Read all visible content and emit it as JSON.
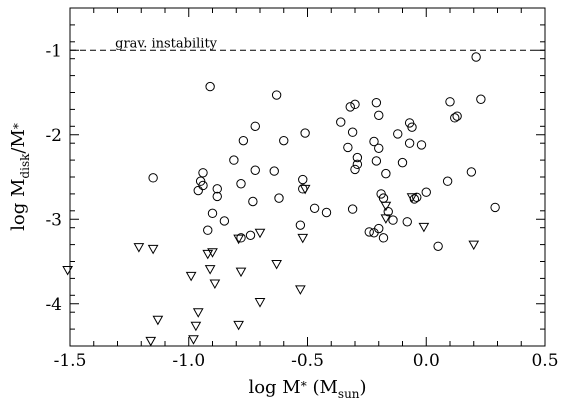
{
  "chart_data": {
    "type": "scatter",
    "title": "",
    "xlabel": {
      "main": "log M",
      "sub": "*",
      "unit_open": " (M",
      "unit_sub": "sun",
      "unit_close": ")"
    },
    "ylabel": {
      "main": "log M",
      "sub": "disk",
      "rest": "/M",
      "sub2": "*"
    },
    "xlim": [
      -1.5,
      0.5
    ],
    "ylim": [
      -4.5,
      -0.5
    ],
    "xticks": [
      -1.5,
      -1.0,
      -0.5,
      0.0,
      0.5
    ],
    "xtick_labels": [
      "-1.5",
      "-1.0",
      "-0.5",
      "0.0",
      "0.5"
    ],
    "yticks": [
      -4,
      -3,
      -2,
      -1
    ],
    "ytick_labels": [
      "-4",
      "-3",
      "-2",
      "-1"
    ],
    "grid": false,
    "reference_line": {
      "y": -1,
      "label": "grav. instability",
      "style": "dashed"
    },
    "series": [
      {
        "marker": "circle",
        "points": [
          [
            -1.15,
            -2.51
          ],
          [
            -0.91,
            -1.43
          ],
          [
            -0.96,
            -2.66
          ],
          [
            -0.95,
            -2.55
          ],
          [
            -0.94,
            -2.45
          ],
          [
            -0.94,
            -2.6
          ],
          [
            -0.88,
            -2.64
          ],
          [
            -0.88,
            -2.73
          ],
          [
            -0.9,
            -2.93
          ],
          [
            -0.85,
            -3.02
          ],
          [
            -0.92,
            -3.13
          ],
          [
            -0.77,
            -2.07
          ],
          [
            -0.81,
            -2.3
          ],
          [
            -0.72,
            -1.9
          ],
          [
            -0.78,
            -2.58
          ],
          [
            -0.73,
            -2.79
          ],
          [
            -0.72,
            -2.42
          ],
          [
            -0.78,
            -3.22
          ],
          [
            -0.74,
            -3.19
          ],
          [
            -0.63,
            -1.53
          ],
          [
            -0.6,
            -2.07
          ],
          [
            -0.64,
            -2.43
          ],
          [
            -0.62,
            -2.75
          ],
          [
            -0.51,
            -1.98
          ],
          [
            -0.52,
            -2.53
          ],
          [
            -0.52,
            -2.64
          ],
          [
            -0.47,
            -2.87
          ],
          [
            -0.53,
            -3.07
          ],
          [
            -0.42,
            -2.92
          ],
          [
            -0.36,
            -1.85
          ],
          [
            -0.32,
            -1.67
          ],
          [
            -0.3,
            -1.64
          ],
          [
            -0.31,
            -1.97
          ],
          [
            -0.33,
            -2.15
          ],
          [
            -0.29,
            -2.27
          ],
          [
            -0.29,
            -2.35
          ],
          [
            -0.3,
            -2.41
          ],
          [
            -0.31,
            -2.88
          ],
          [
            -0.21,
            -1.62
          ],
          [
            -0.2,
            -1.77
          ],
          [
            -0.22,
            -2.08
          ],
          [
            -0.2,
            -2.16
          ],
          [
            -0.21,
            -2.31
          ],
          [
            -0.17,
            -2.46
          ],
          [
            -0.19,
            -2.7
          ],
          [
            -0.18,
            -2.75
          ],
          [
            -0.16,
            -2.91
          ],
          [
            -0.14,
            -3.01
          ],
          [
            -0.2,
            -3.11
          ],
          [
            -0.24,
            -3.15
          ],
          [
            -0.22,
            -3.16
          ],
          [
            -0.18,
            -3.22
          ],
          [
            -0.12,
            -1.99
          ],
          [
            -0.1,
            -2.33
          ],
          [
            -0.07,
            -1.86
          ],
          [
            -0.06,
            -1.91
          ],
          [
            -0.07,
            -2.1
          ],
          [
            -0.04,
            -2.74
          ],
          [
            -0.08,
            -3.03
          ],
          [
            -0.02,
            -2.12
          ],
          [
            0.0,
            -2.68
          ],
          [
            0.05,
            -3.32
          ],
          [
            0.1,
            -1.61
          ],
          [
            0.12,
            -1.8
          ],
          [
            0.13,
            -1.78
          ],
          [
            0.09,
            -2.55
          ],
          [
            0.21,
            -1.08
          ],
          [
            0.23,
            -1.58
          ],
          [
            0.19,
            -2.44
          ],
          [
            0.29,
            -2.86
          ],
          [
            -0.05,
            -2.76
          ]
        ]
      },
      {
        "marker": "triangle-down",
        "points": [
          [
            -1.51,
            -3.6
          ],
          [
            -1.21,
            -3.33
          ],
          [
            -1.15,
            -3.35
          ],
          [
            -1.13,
            -4.19
          ],
          [
            -1.16,
            -4.44
          ],
          [
            -0.99,
            -3.67
          ],
          [
            -0.92,
            -3.41
          ],
          [
            -0.9,
            -3.39
          ],
          [
            -0.91,
            -3.59
          ],
          [
            -0.89,
            -3.76
          ],
          [
            -0.96,
            -4.1
          ],
          [
            -0.97,
            -4.26
          ],
          [
            -0.98,
            -4.42
          ],
          [
            -0.79,
            -3.23
          ],
          [
            -0.7,
            -3.16
          ],
          [
            -0.78,
            -3.62
          ],
          [
            -0.7,
            -3.98
          ],
          [
            -0.79,
            -4.25
          ],
          [
            -0.63,
            -3.53
          ],
          [
            -0.51,
            -2.64
          ],
          [
            -0.52,
            -3.22
          ],
          [
            -0.53,
            -3.83
          ],
          [
            -0.17,
            -2.84
          ],
          [
            -0.17,
            -2.99
          ],
          [
            -0.06,
            -2.74
          ],
          [
            -0.01,
            -3.09
          ],
          [
            0.2,
            -3.3
          ]
        ]
      }
    ]
  }
}
